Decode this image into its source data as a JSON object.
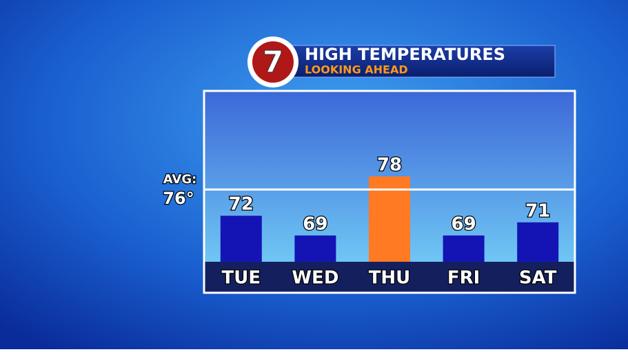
{
  "chart_data": {
    "type": "bar",
    "logo": "7",
    "title": "HIGH TEMPERATURES",
    "subtitle": "LOOKING AHEAD",
    "categories": [
      "TUE",
      "WED",
      "THU",
      "FRI",
      "SAT"
    ],
    "values": [
      72,
      69,
      78,
      69,
      71
    ],
    "colors": [
      "#1414b4",
      "#1414b4",
      "#ff7a22",
      "#1414b4",
      "#1414b4"
    ],
    "ylim": [
      65,
      91
    ],
    "average": {
      "label": "AVG:",
      "value": 76,
      "value_label": "76°"
    }
  }
}
